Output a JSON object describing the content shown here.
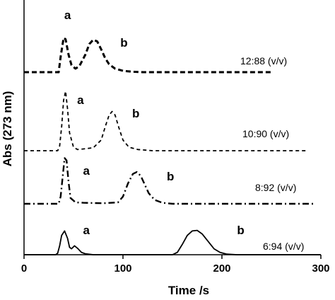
{
  "chart_data": {
    "type": "line",
    "title": "",
    "xlabel": "Time /s",
    "ylabel": "Abs (273 nm)",
    "xlim": [
      0,
      300
    ],
    "x_ticks": [
      "0",
      "100",
      "200",
      "300"
    ],
    "grid": false,
    "legend": "none",
    "series": [
      {
        "name": "12:88 (v/v)",
        "style": "dashed-bold",
        "x": [
          0,
          35,
          37,
          40,
          42,
          45,
          48,
          52,
          56,
          62,
          66,
          70,
          74,
          78,
          82,
          86,
          92,
          100,
          110,
          120,
          250
        ],
        "y": [
          0,
          0,
          0.35,
          0.78,
          0.75,
          0.4,
          0.16,
          0.08,
          0.14,
          0.4,
          0.64,
          0.74,
          0.7,
          0.52,
          0.32,
          0.18,
          0.08,
          0.03,
          0.01,
          0,
          0
        ],
        "labels": [
          {
            "text": "a",
            "x": 44
          },
          {
            "text": "b",
            "x": 101
          }
        ]
      },
      {
        "name": "10:90 (v/v)",
        "style": "dashed",
        "x": [
          0,
          34,
          36,
          38,
          40,
          42,
          44,
          46,
          50,
          54,
          60,
          70,
          78,
          82,
          86,
          89,
          92,
          96,
          100,
          106,
          115,
          130,
          285
        ],
        "y": [
          0,
          0,
          0.08,
          0.4,
          0.85,
          1.0,
          0.7,
          0.3,
          0.06,
          0.02,
          0.03,
          0.05,
          0.18,
          0.4,
          0.6,
          0.66,
          0.6,
          0.38,
          0.18,
          0.06,
          0.02,
          0,
          0
        ],
        "labels": [
          {
            "text": "a",
            "x": 57
          },
          {
            "text": "b",
            "x": 113
          }
        ]
      },
      {
        "name": "8:92 (v/v)",
        "style": "dash-dot",
        "x": [
          0,
          35,
          37,
          39,
          41,
          43,
          45,
          47,
          52,
          60,
          80,
          95,
          100,
          105,
          110,
          114,
          118,
          122,
          126,
          132,
          140,
          150,
          295
        ],
        "y": [
          0,
          0,
          0.15,
          0.55,
          0.95,
          0.9,
          0.45,
          0.12,
          0.03,
          0.02,
          0.01,
          0.03,
          0.15,
          0.42,
          0.62,
          0.66,
          0.58,
          0.4,
          0.22,
          0.08,
          0.02,
          0,
          0
        ],
        "labels": [
          {
            "text": "a",
            "x": 63
          },
          {
            "text": "b",
            "x": 148
          }
        ]
      },
      {
        "name": "6:94 (v/v)",
        "style": "solid",
        "x": [
          0,
          32,
          34,
          36,
          38,
          41,
          44,
          46,
          48,
          51,
          54,
          58,
          62,
          70,
          150,
          155,
          160,
          165,
          170,
          175,
          180,
          186,
          192,
          198,
          205,
          215,
          300
        ],
        "y": [
          0,
          0,
          0.05,
          0.3,
          0.65,
          0.8,
          0.55,
          0.25,
          0.2,
          0.3,
          0.22,
          0.08,
          0.03,
          0,
          0,
          0.08,
          0.35,
          0.65,
          0.8,
          0.82,
          0.7,
          0.45,
          0.2,
          0.08,
          0.02,
          0,
          0
        ],
        "labels": [
          {
            "text": "a",
            "x": 63
          },
          {
            "text": "b",
            "x": 219
          }
        ]
      }
    ]
  }
}
